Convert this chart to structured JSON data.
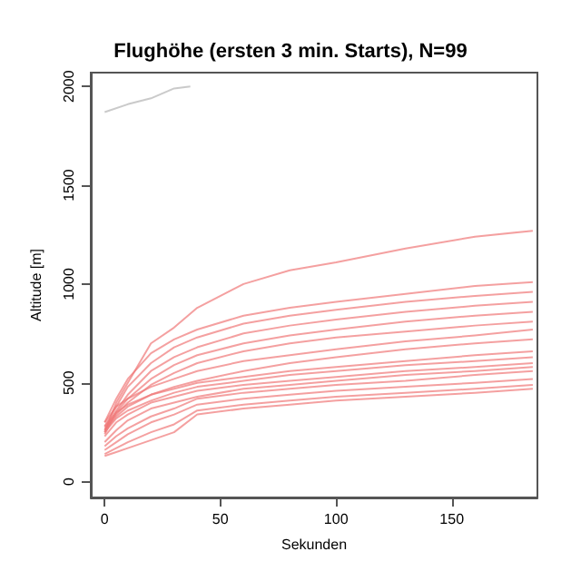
{
  "chart_data": {
    "type": "line",
    "title": "Flughöhe (ersten 3 min. Starts), N=99",
    "xlabel": "Sekunden",
    "ylabel": "Altitude [m]",
    "xlim": [
      -6,
      187
    ],
    "xticks": [
      0,
      50,
      100,
      150
    ],
    "ylim": [
      -80,
      2070
    ],
    "yticks": [
      0,
      500,
      1000,
      1500,
      2000
    ],
    "grid": false,
    "marker": "none",
    "line_style": "solid",
    "x": [
      0,
      5,
      10,
      20,
      30,
      40,
      60,
      80,
      100,
      130,
      160,
      185
    ],
    "series": [
      {
        "color": "#f07878",
        "values": [
          250,
          400,
          500,
          700,
          780,
          880,
          1000,
          1070,
          1110,
          1180,
          1240,
          1270
        ]
      },
      {
        "color": "#f07878",
        "values": [
          300,
          420,
          520,
          650,
          720,
          770,
          840,
          880,
          910,
          950,
          990,
          1010
        ]
      },
      {
        "color": "#f07878",
        "values": [
          280,
          380,
          480,
          600,
          680,
          730,
          800,
          840,
          870,
          910,
          940,
          960
        ]
      },
      {
        "color": "#f07878",
        "values": [
          260,
          360,
          440,
          560,
          630,
          680,
          750,
          790,
          820,
          860,
          890,
          910
        ]
      },
      {
        "color": "#f07878",
        "values": [
          240,
          350,
          420,
          520,
          590,
          640,
          700,
          740,
          770,
          810,
          840,
          860
        ]
      },
      {
        "color": "#f07878",
        "values": [
          270,
          340,
          400,
          490,
          550,
          600,
          660,
          700,
          730,
          760,
          790,
          810
        ]
      },
      {
        "color": "#f07878",
        "values": [
          300,
          380,
          420,
          480,
          520,
          560,
          610,
          640,
          670,
          710,
          740,
          770
        ]
      },
      {
        "color": "#f07878",
        "values": [
          260,
          330,
          380,
          440,
          480,
          510,
          560,
          600,
          630,
          670,
          700,
          720
        ]
      },
      {
        "color": "#f07878",
        "values": [
          280,
          350,
          390,
          440,
          470,
          500,
          530,
          560,
          580,
          610,
          640,
          660
        ]
      },
      {
        "color": "#f07878",
        "values": [
          250,
          320,
          360,
          410,
          450,
          480,
          510,
          540,
          560,
          590,
          610,
          630
        ]
      },
      {
        "color": "#f07878",
        "values": [
          230,
          300,
          340,
          400,
          430,
          460,
          490,
          510,
          530,
          560,
          580,
          600
        ]
      },
      {
        "color": "#f07878",
        "values": [
          200,
          260,
          310,
          370,
          400,
          430,
          470,
          490,
          510,
          540,
          560,
          580
        ]
      },
      {
        "color": "#f07878",
        "values": [
          180,
          230,
          270,
          330,
          370,
          420,
          450,
          470,
          490,
          510,
          540,
          560
        ]
      },
      {
        "color": "#f07878",
        "values": [
          160,
          200,
          240,
          300,
          340,
          390,
          420,
          440,
          460,
          480,
          500,
          520
        ]
      },
      {
        "color": "#f07878",
        "values": [
          140,
          170,
          200,
          250,
          290,
          360,
          390,
          410,
          430,
          450,
          470,
          490
        ]
      },
      {
        "color": "#f07878",
        "values": [
          130,
          150,
          170,
          210,
          250,
          340,
          370,
          390,
          410,
          430,
          450,
          470
        ]
      },
      {
        "color": "#b4b4b4",
        "x": [
          0,
          10,
          20,
          30,
          37
        ],
        "values": [
          1870,
          1910,
          1940,
          1990,
          2000
        ]
      }
    ]
  }
}
